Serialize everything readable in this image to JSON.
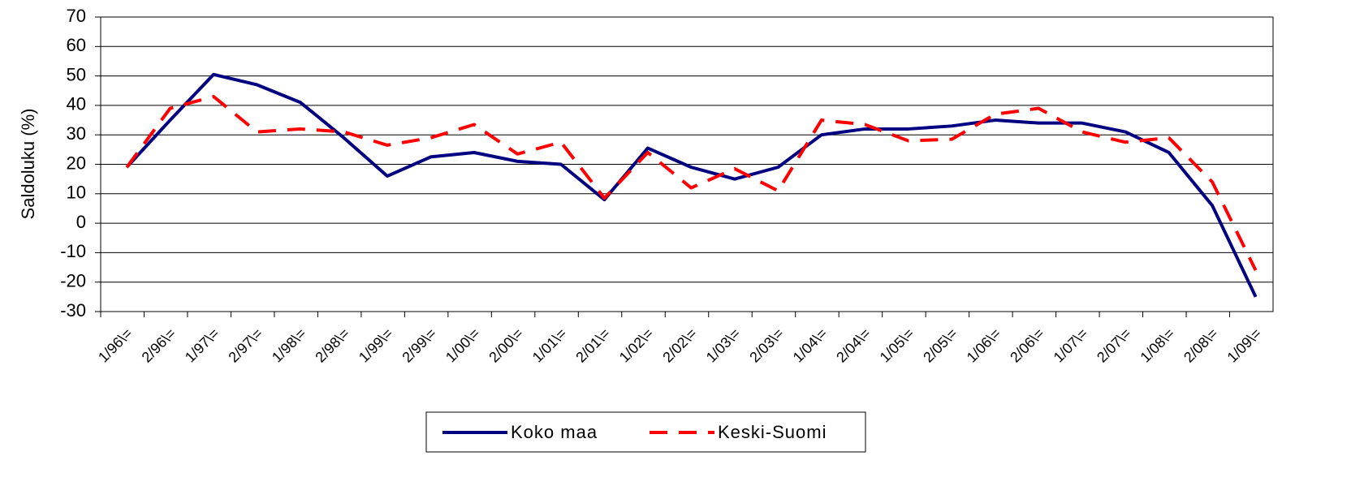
{
  "chart_data": {
    "type": "line",
    "y_label": "Saldoluku (%)",
    "categories": [
      "1/96\\=",
      "2/96\\=",
      "1/97\\=",
      "2/97\\=",
      "1/98\\=",
      "2/98\\=",
      "1/99\\=",
      "2/99\\=",
      "1/00\\=",
      "2/00\\=",
      "1/01\\=",
      "2/01\\=",
      "1/02\\=",
      "2/02\\=",
      "1/03\\=",
      "2/03\\=",
      "1/04\\=",
      "2/04\\=",
      "1/05\\=",
      "2/05\\=",
      "1/06\\=",
      "2/06\\=",
      "1/07\\=",
      "2/07\\=",
      "1/08\\=",
      "2/08\\=",
      "1/09\\="
    ],
    "series": [
      {
        "name": "Koko maa",
        "color": "#000080",
        "dash": false,
        "values": [
          19,
          35,
          50.5,
          47,
          41,
          29,
          16,
          22.5,
          24,
          21,
          20,
          8,
          25.5,
          19,
          15,
          19,
          30,
          32,
          32,
          33,
          35,
          34,
          34,
          31,
          24,
          6,
          -25
        ]
      },
      {
        "name": "Keski-Suomi",
        "color": "#ff0000",
        "dash": true,
        "values": [
          19,
          39,
          43,
          31,
          32,
          31,
          26.5,
          29,
          33.5,
          23.5,
          27.5,
          8.5,
          24,
          12,
          18.5,
          11,
          35,
          33.5,
          28,
          28.5,
          37,
          39,
          31,
          27.5,
          29,
          14,
          -16
        ]
      }
    ],
    "ylim": [
      -30,
      70
    ],
    "yticks": [
      -30,
      -20,
      -10,
      0,
      10,
      20,
      30,
      40,
      50,
      60,
      70
    ],
    "grid": true,
    "legend": "bottom"
  }
}
